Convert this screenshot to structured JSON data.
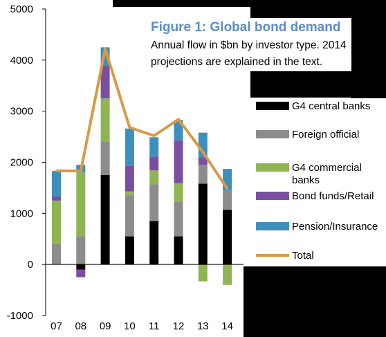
{
  "chart_data": {
    "type": "bar",
    "title": "Figure 1: Global bond demand",
    "subtitle_lines": [
      "Annual flow in $bn by investor type. 2014",
      "projections are explained in the text."
    ],
    "categories": [
      "07",
      "08",
      "09",
      "10",
      "11",
      "12",
      "13",
      "14"
    ],
    "ylim": [
      -1000,
      5000
    ],
    "yticks": [
      "5000",
      "4000",
      "3000",
      "2000",
      "1000",
      "0",
      "-1000"
    ],
    "series": [
      {
        "name": "G4 central banks",
        "values": [
          0,
          -100,
          1750,
          550,
          850,
          550,
          1580,
          1070
        ],
        "color": "#000000"
      },
      {
        "name": "Foreign official",
        "values": [
          400,
          550,
          650,
          800,
          720,
          680,
          370,
          370
        ],
        "color": "#8c8c8c"
      },
      {
        "name": "G4 commercial banks",
        "values": [
          850,
          1250,
          850,
          80,
          270,
          360,
          0,
          -350
        ],
        "color": "#8fb553"
      },
      {
        "name": "Bond funds/Retail",
        "values": [
          80,
          -150,
          650,
          500,
          270,
          840,
          150,
          0
        ],
        "color": "#7b4fa0"
      },
      {
        "name": "Pension/Insurance",
        "values": [
          500,
          150,
          350,
          730,
          380,
          400,
          480,
          430
        ],
        "color": "#3e90bc"
      }
    ],
    "extra_negative": [
      0,
      0,
      0,
      0,
      0,
      0,
      -330,
      -50
    ],
    "total": {
      "name": "Total",
      "values": [
        1830,
        1830,
        4220,
        2680,
        2520,
        2840,
        2200,
        1480
      ],
      "color": "#d89a45"
    },
    "legend_labels": [
      "G4 central banks",
      "Foreign official",
      "G4 commercial banks",
      "Bond funds/Retail",
      "Pension/Insurance",
      "Total"
    ],
    "legend_placement": "right",
    "grid": false
  }
}
